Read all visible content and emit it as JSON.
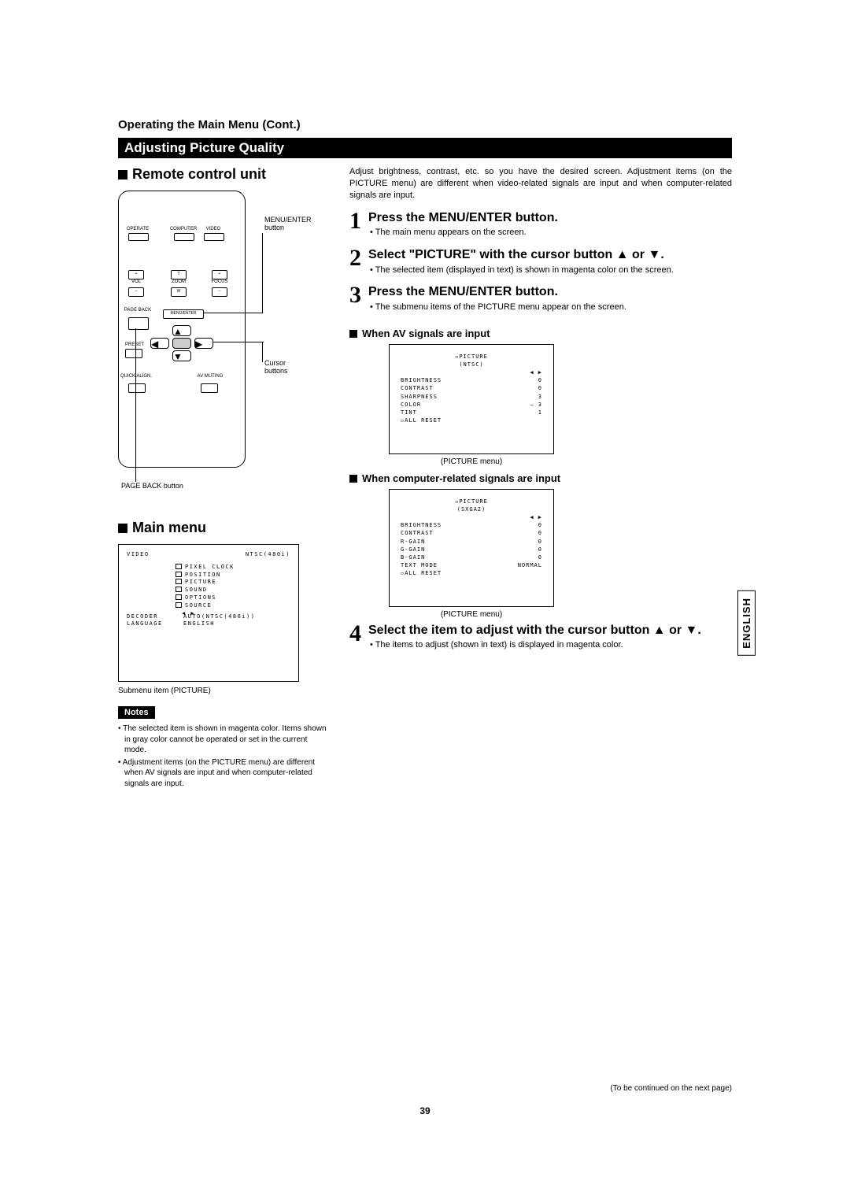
{
  "breadcrumb": "Operating the Main Menu (Cont.)",
  "sectionBar": "Adjusting Picture Quality",
  "left": {
    "remoteTitle": "Remote control unit",
    "remoteLabels": {
      "menuEnter": "MENU/ENTER button",
      "cursor": "Cursor buttons",
      "pageBack": "PAGE BACK button",
      "operate": "OPERATE",
      "computer": "COMPUTER",
      "video": "VIDEO",
      "vol": "VOL",
      "zoom": "ZOOM",
      "focus": "FOCUS",
      "page": "PAGE BACK",
      "preset": "PRESET",
      "quick": "QUICK ALIGN.",
      "av": "AV MUTING",
      "menu": "MENU/ENTER",
      "t": "T",
      "w": "W"
    },
    "mainMenuTitle": "Main menu",
    "mainMenu": {
      "topLeft": "VIDEO",
      "topRight": "NTSC(480i)",
      "items": [
        "PIXEL CLOCK",
        "POSITION",
        "PICTURE",
        "SOUND",
        "OPTIONS",
        "SOURCE"
      ],
      "decoderLabel": "DECODER",
      "decoderVal": "AUTO(NTSC(480i))",
      "langLabel": "LANGUAGE",
      "langVal": "ENGLISH"
    },
    "mainMenuCaption": "Submenu item (PICTURE)",
    "notesLabel": "Notes",
    "notes": [
      "• The selected item is shown in magenta color. Items shown in gray color cannot be operated or set in the current mode.",
      "• Adjustment items (on the PICTURE menu) are different when AV signals are input and when computer-related signals are input."
    ]
  },
  "right": {
    "intro": "Adjust brightness, contrast, etc. so you have the desired screen. Adjustment items (on the PICTURE menu) are different when video-related signals are input and when computer-related signals are input.",
    "steps": [
      {
        "n": "1",
        "title": "Press the MENU/ENTER button.",
        "bullets": [
          "• The main menu appears on the screen."
        ]
      },
      {
        "n": "2",
        "title": "Select \"PICTURE\" with the cursor button ▲ or ▼.",
        "bullets": [
          "• The selected item (displayed in text) is shown in magenta color on the screen."
        ]
      },
      {
        "n": "3",
        "title": "Press the MENU/ENTER button.",
        "bullets": [
          "• The submenu items of the PICTURE menu appear on the screen."
        ]
      },
      {
        "n": "4",
        "title": "Select the item to adjust with the cursor button ▲ or ▼.",
        "bullets": [
          "• The items to adjust (shown in text) is displayed in magenta color."
        ]
      }
    ],
    "avHeading": "When AV signals are input",
    "avOsd": {
      "title": "PICTURE",
      "sub": "(NTSC)",
      "rows": [
        {
          "l": "BRIGHTNESS",
          "r": "0"
        },
        {
          "l": "CONTRAST",
          "r": "0"
        },
        {
          "l": "SHARPNESS",
          "r": "3"
        },
        {
          "l": "COLOR",
          "r": "–   3"
        },
        {
          "l": "TINT",
          "r": "1"
        }
      ],
      "reset": "ALL RESET"
    },
    "avCaption": "(PICTURE menu)",
    "pcHeading": "When computer-related signals are input",
    "pcOsd": {
      "title": "PICTURE",
      "sub": "(SXGA2)",
      "rows": [
        {
          "l": "BRIGHTNESS",
          "r": "0"
        },
        {
          "l": "CONTRAST",
          "r": "0"
        },
        {
          "l": "R-GAIN",
          "r": "0"
        },
        {
          "l": "G-GAIN",
          "r": "0"
        },
        {
          "l": "B-GAIN",
          "r": "0"
        },
        {
          "l": "TEXT MODE",
          "r": "NORMAL"
        }
      ],
      "reset": "ALL RESET"
    },
    "pcCaption": "(PICTURE menu)"
  },
  "sideTab": "ENGLISH",
  "continued": "(To be continued on the next page)",
  "pageNum": "39"
}
